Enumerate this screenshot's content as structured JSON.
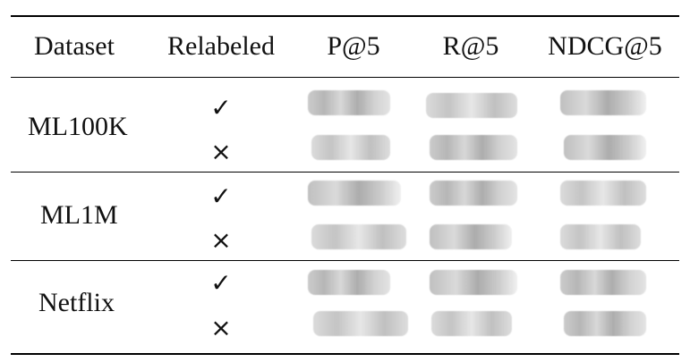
{
  "table": {
    "headers": [
      "Dataset",
      "Relabeled",
      "P@5",
      "R@5",
      "NDCG@5"
    ],
    "check_mark": "✓",
    "cross_mark": "×",
    "rows": [
      {
        "dataset": "ML100K"
      },
      {
        "dataset": "ML1M"
      },
      {
        "dataset": "Netflix"
      }
    ]
  }
}
